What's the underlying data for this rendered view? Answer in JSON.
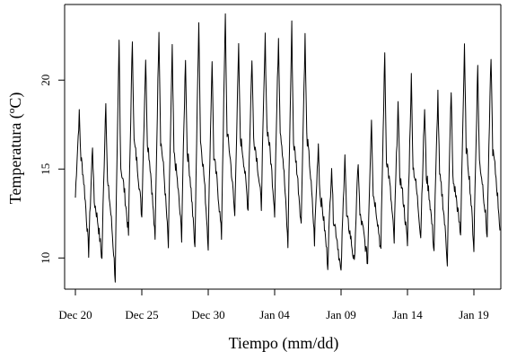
{
  "chart_data": {
    "type": "line",
    "title": "",
    "xlabel": "Tiempo (mm/dd)",
    "ylabel": "Temperatura (ºC)",
    "x_ticks": [
      {
        "label": "Dec 20",
        "day": 0
      },
      {
        "label": "Dec 25",
        "day": 5
      },
      {
        "label": "Dec 30",
        "day": 10
      },
      {
        "label": "Jan 04",
        "day": 15
      },
      {
        "label": "Jan 09",
        "day": 20
      },
      {
        "label": "Jan 14",
        "day": 25
      },
      {
        "label": "Jan 19",
        "day": 30
      }
    ],
    "y_ticks": [
      10,
      15,
      20
    ],
    "xlim": [
      "Dec 19",
      "Jan 21"
    ],
    "ylim": [
      8.5,
      24
    ],
    "grid": false,
    "legend": "none",
    "daily_cycles": {
      "description_of_values": "Each day: date, daily minimum (ºC), daily maximum (ºC)",
      "dates": [
        "Dec 20",
        "Dec 21",
        "Dec 22",
        "Dec 23",
        "Dec 24",
        "Dec 25",
        "Dec 26",
        "Dec 27",
        "Dec 28",
        "Dec 29",
        "Dec 30",
        "Dec 31",
        "Jan 01",
        "Jan 02",
        "Jan 03",
        "Jan 04",
        "Jan 05",
        "Jan 06",
        "Jan 07",
        "Jan 08",
        "Jan 09",
        "Jan 10",
        "Jan 11",
        "Jan 12",
        "Jan 13",
        "Jan 14",
        "Jan 15",
        "Jan 16",
        "Jan 17",
        "Jan 18",
        "Jan 19",
        "Jan 20"
      ],
      "min": [
        13.4,
        10.3,
        9.9,
        8.8,
        11.3,
        12.3,
        10.9,
        10.6,
        11.2,
        10.4,
        10.7,
        11.2,
        12.3,
        12.7,
        12.9,
        12.6,
        10.6,
        11.8,
        10.9,
        9.6,
        9.0,
        9.6,
        9.7,
        10.3,
        10.9,
        10.7,
        11.2,
        10.4,
        9.8,
        11.2,
        10.5,
        11.2
      ],
      "max": [
        18.2,
        16.5,
        19.2,
        22.5,
        22.6,
        21.5,
        23.3,
        22.0,
        21.6,
        23.8,
        21.5,
        23.9,
        22.0,
        21.5,
        22.6,
        22.7,
        23.4,
        22.7,
        16.6,
        15.4,
        16.1,
        15.6,
        18.2,
        21.8,
        18.9,
        20.4,
        18.6,
        19.5,
        19.8,
        22.0,
        21.1,
        21.7
      ]
    },
    "series": [
      {
        "values_ref": "daily_cycles"
      }
    ]
  }
}
